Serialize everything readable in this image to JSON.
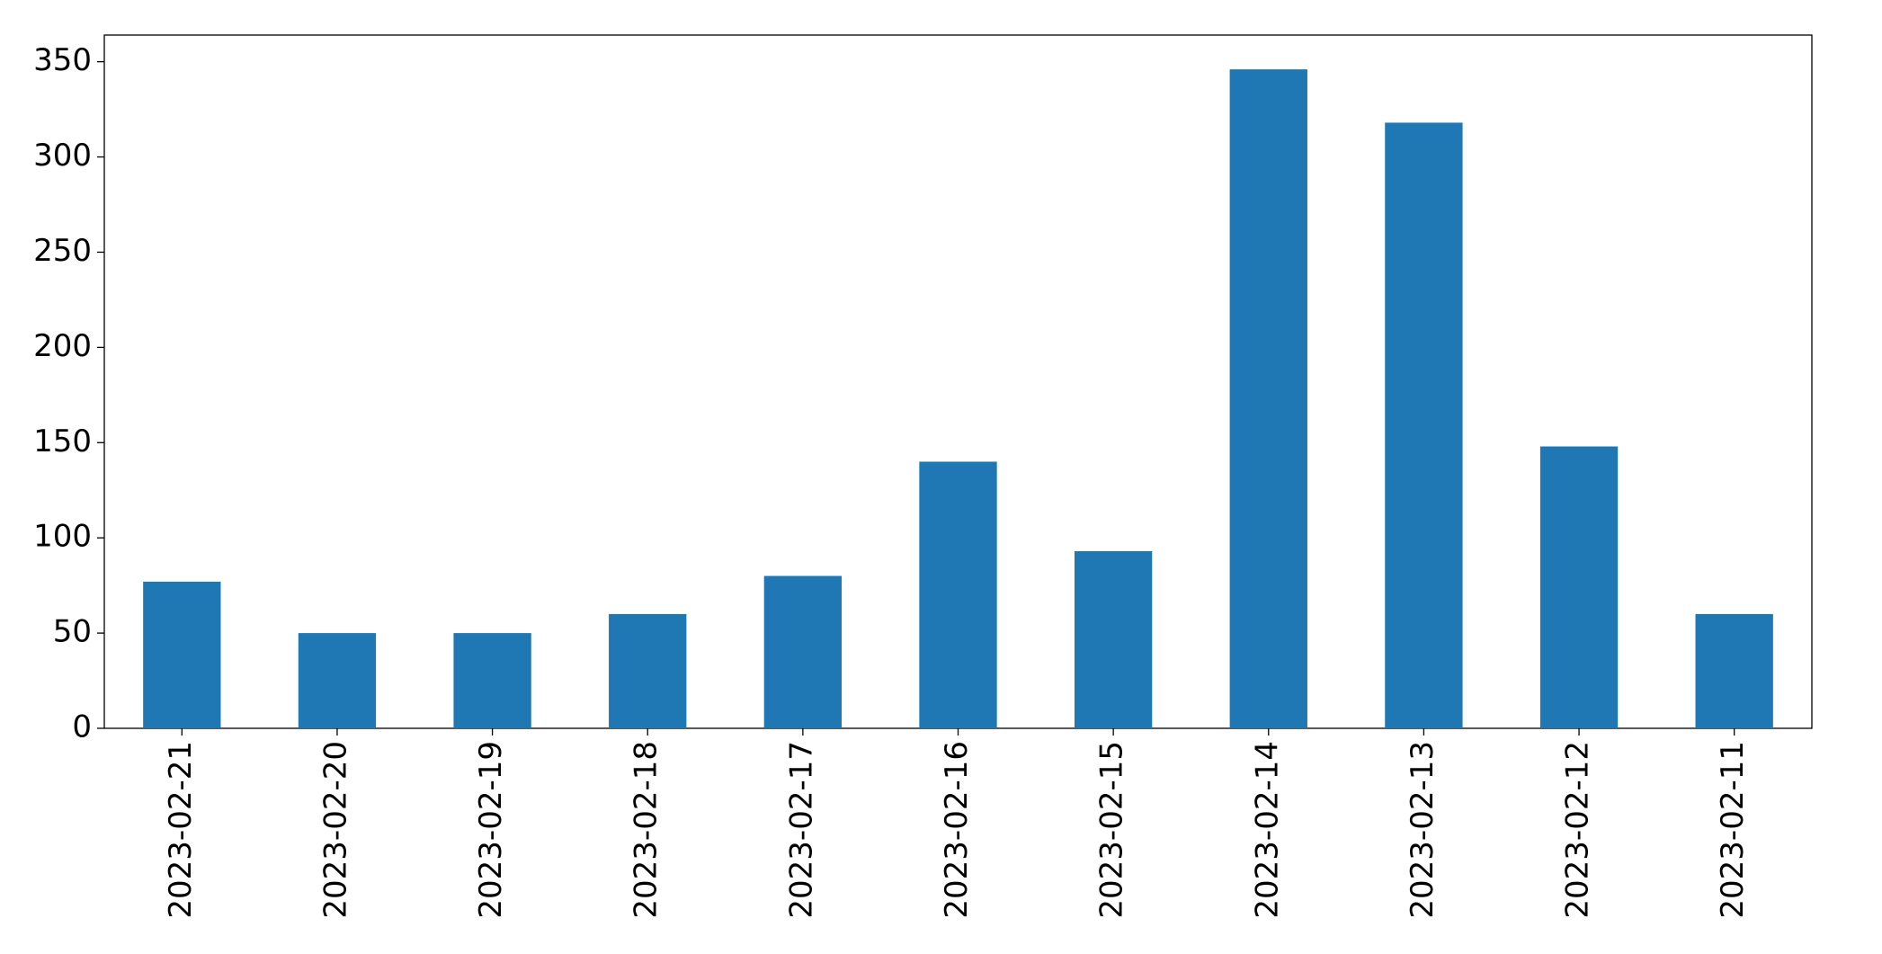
{
  "chart_data": {
    "type": "bar",
    "categories": [
      "2023-02-21",
      "2023-02-20",
      "2023-02-19",
      "2023-02-18",
      "2023-02-17",
      "2023-02-16",
      "2023-02-15",
      "2023-02-14",
      "2023-02-13",
      "2023-02-12",
      "2023-02-11"
    ],
    "values": [
      77,
      50,
      50,
      60,
      80,
      140,
      93,
      346,
      318,
      148,
      60
    ],
    "color": "#1f77b4",
    "ylim": [
      0,
      364
    ],
    "yticks": [
      0,
      50,
      100,
      150,
      200,
      250,
      300,
      350
    ],
    "grid": false
  }
}
